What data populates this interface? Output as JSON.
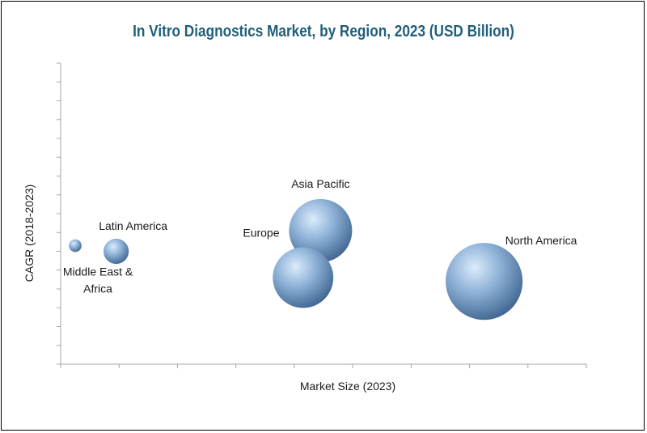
{
  "chart_data": {
    "type": "scatter",
    "subtype": "bubble",
    "title": "In Vitro Diagnostics Market, by Region, 2023 (USD Billion)",
    "xlabel": "Market Size (2023)",
    "ylabel": "CAGR (2018-2023)",
    "xlim": [
      0,
      9
    ],
    "ylim": [
      0,
      16
    ],
    "grid": false,
    "legend": "none",
    "series": [
      {
        "label": "Middle East & Africa",
        "x": 0.25,
        "y": 6.3,
        "size": 1.0,
        "label_position": "below"
      },
      {
        "label": "Latin America",
        "x": 0.95,
        "y": 6.0,
        "size": 2.0,
        "label_position": "top-right"
      },
      {
        "label": "Asia Pacific",
        "x": 4.45,
        "y": 7.1,
        "size": 5.0,
        "label_position": "above"
      },
      {
        "label": "Europe",
        "x": 4.15,
        "y": 4.6,
        "size": 4.8,
        "label_position": "top-left"
      },
      {
        "label": "North America",
        "x": 7.25,
        "y": 4.4,
        "size": 6.1,
        "label_position": "top-right"
      }
    ],
    "colors": {
      "bubble_light": "#dcecfb",
      "bubble_mid": "#8fb2d8",
      "bubble_dark": "#3f6590",
      "title": "#1f5f7a",
      "axis": "#a6a6a6"
    }
  }
}
